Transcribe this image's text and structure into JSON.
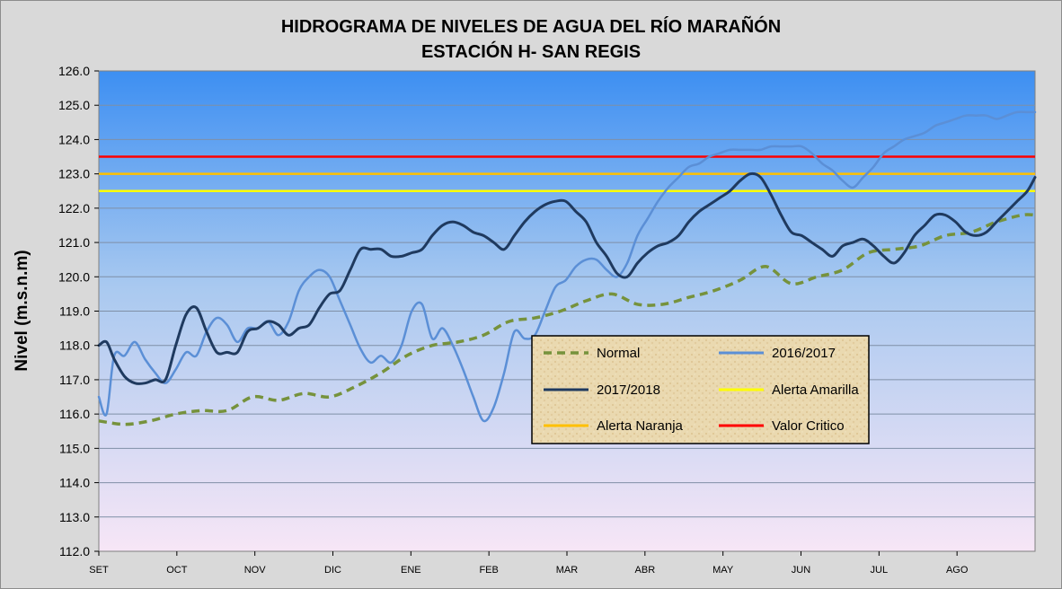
{
  "chart_data": {
    "type": "line",
    "title_line1": "HIDROGRAMA DE NIVELES DE AGUA DEL RÍO MARAÑÓN",
    "title_line2": "ESTACIÓN H- SAN REGIS",
    "ylabel": "Nivel (m.s.n.m)",
    "xlabel": "",
    "ylim": [
      112.0,
      126.0
    ],
    "yticks": [
      "112.0",
      "113.0",
      "114.0",
      "115.0",
      "116.0",
      "117.0",
      "118.0",
      "119.0",
      "120.0",
      "121.0",
      "122.0",
      "123.0",
      "124.0",
      "125.0",
      "126.0"
    ],
    "categories": [
      "SET",
      "OCT",
      "NOV",
      "DIC",
      "ENE",
      "FEB",
      "MAR",
      "ABR",
      "MAY",
      "JUN",
      "JUL",
      "AGO"
    ],
    "x_unit": "day of hydrological year starting 1 September",
    "x_range": [
      0,
      365
    ],
    "grid": true,
    "legend_position": "inside-center-right",
    "colors": {
      "background_top": "#3d8ff2",
      "background_bottom": "#f7e6f6",
      "frame": "#d9d9d9",
      "normal": "#76923c",
      "y2016": "#5b8fd6",
      "y2017": "#1f3a5f",
      "alerta_amarilla": "#ffff00",
      "alerta_naranja": "#ffc000",
      "valor_critico": "#ff0000"
    },
    "series": [
      {
        "name": "Normal",
        "key": "normal",
        "style": "dashed",
        "x": [
          0,
          10,
          20,
          30,
          40,
          50,
          60,
          70,
          80,
          90,
          100,
          110,
          120,
          130,
          140,
          150,
          160,
          170,
          180,
          190,
          200,
          210,
          220,
          230,
          240,
          250,
          260,
          270,
          280,
          290,
          300,
          310,
          320,
          330,
          340,
          350,
          360,
          365
        ],
        "y": [
          115.8,
          115.7,
          115.8,
          116.0,
          116.1,
          116.1,
          116.5,
          116.4,
          116.6,
          116.5,
          116.8,
          117.2,
          117.7,
          118.0,
          118.1,
          118.3,
          118.7,
          118.8,
          119.0,
          119.3,
          119.5,
          119.2,
          119.2,
          119.4,
          119.6,
          119.9,
          120.3,
          119.8,
          120.0,
          120.2,
          120.7,
          120.8,
          120.9,
          121.2,
          121.3,
          121.6,
          121.8,
          121.8
        ]
      },
      {
        "name": "2016/2017",
        "key": "y2016",
        "style": "solid",
        "x": [
          0,
          3,
          6,
          10,
          14,
          18,
          22,
          26,
          30,
          34,
          38,
          42,
          46,
          50,
          54,
          58,
          62,
          66,
          70,
          74,
          78,
          82,
          86,
          90,
          94,
          98,
          102,
          106,
          110,
          114,
          118,
          122,
          126,
          130,
          134,
          138,
          142,
          146,
          150,
          154,
          158,
          162,
          166,
          170,
          174,
          178,
          182,
          186,
          190,
          194,
          198,
          202,
          206,
          210,
          214,
          218,
          222,
          226,
          230,
          234,
          238,
          242,
          246,
          250,
          254,
          258,
          262,
          266,
          270,
          274,
          278,
          282,
          286,
          290,
          294,
          298,
          302,
          306,
          310,
          314,
          318,
          322,
          326,
          330,
          334,
          338,
          342,
          346,
          350,
          354,
          358,
          362,
          365
        ],
        "y": [
          116.5,
          116.0,
          117.7,
          117.7,
          118.1,
          117.6,
          117.2,
          116.9,
          117.3,
          117.8,
          117.7,
          118.4,
          118.8,
          118.6,
          118.1,
          118.5,
          118.5,
          118.7,
          118.3,
          118.7,
          119.6,
          120.0,
          120.2,
          120.0,
          119.3,
          118.6,
          117.9,
          117.5,
          117.7,
          117.5,
          118.0,
          119.0,
          119.2,
          118.2,
          118.5,
          118.0,
          117.3,
          116.5,
          115.8,
          116.2,
          117.2,
          118.4,
          118.2,
          118.3,
          119.0,
          119.7,
          119.9,
          120.3,
          120.5,
          120.5,
          120.2,
          120.0,
          120.4,
          121.2,
          121.7,
          122.2,
          122.6,
          122.9,
          123.2,
          123.3,
          123.5,
          123.6,
          123.7,
          123.7,
          123.7,
          123.7,
          123.8,
          123.8,
          123.8,
          123.8,
          123.6,
          123.3,
          123.1,
          122.8,
          122.6,
          122.9,
          123.2,
          123.6,
          123.8,
          124.0,
          124.1,
          124.2,
          124.4,
          124.5,
          124.6,
          124.7,
          124.7,
          124.7,
          124.6,
          124.7,
          124.8,
          124.8,
          124.8
        ]
      },
      {
        "name": "2017/2018",
        "key": "y2017",
        "style": "solid",
        "x": [
          0,
          3,
          6,
          10,
          14,
          18,
          22,
          26,
          30,
          34,
          38,
          42,
          46,
          50,
          54,
          58,
          62,
          66,
          70,
          74,
          78,
          82,
          86,
          90,
          94,
          98,
          102,
          106,
          110,
          114,
          118,
          122,
          126,
          130,
          134,
          138,
          142,
          146,
          150,
          154,
          158,
          162,
          166,
          170,
          174,
          178,
          182,
          186,
          190,
          194,
          198,
          202,
          206,
          210,
          214,
          218,
          222,
          226,
          230,
          234,
          238,
          242,
          246,
          250,
          254,
          258,
          262,
          266,
          270,
          274,
          278,
          282,
          286,
          290,
          294,
          298,
          302,
          306,
          310,
          314,
          318,
          322,
          326,
          330,
          334,
          338,
          342,
          346,
          350,
          354,
          358,
          362,
          365
        ],
        "y": [
          118.0,
          118.1,
          117.6,
          117.1,
          116.9,
          116.9,
          117.0,
          117.0,
          118.0,
          118.9,
          119.1,
          118.4,
          117.8,
          117.8,
          117.8,
          118.4,
          118.5,
          118.7,
          118.6,
          118.3,
          118.5,
          118.6,
          119.1,
          119.5,
          119.6,
          120.2,
          120.8,
          120.8,
          120.8,
          120.6,
          120.6,
          120.7,
          120.8,
          121.2,
          121.5,
          121.6,
          121.5,
          121.3,
          121.2,
          121.0,
          120.8,
          121.2,
          121.6,
          121.9,
          122.1,
          122.2,
          122.2,
          121.9,
          121.6,
          121.0,
          120.6,
          120.1,
          120.0,
          120.4,
          120.7,
          120.9,
          121.0,
          121.2,
          121.6,
          121.9,
          122.1,
          122.3,
          122.5,
          122.8,
          123.0,
          122.9,
          122.4,
          121.8,
          121.3,
          121.2,
          121.0,
          120.8,
          120.6,
          120.9,
          121.0,
          121.1,
          120.9,
          120.6,
          120.4,
          120.7,
          121.2,
          121.5,
          121.8,
          121.8,
          121.6,
          121.3,
          121.2,
          121.3,
          121.6,
          121.9,
          122.2,
          122.5,
          122.9
        ]
      }
    ],
    "thresholds": [
      {
        "name": "Alerta Amarilla",
        "key": "alerta_amarilla",
        "value": 122.5
      },
      {
        "name": "Alerta Naranja",
        "key": "alerta_naranja",
        "value": 123.0
      },
      {
        "name": "Valor Critico",
        "key": "valor_critico",
        "value": 123.5
      }
    ],
    "legend": [
      {
        "label": "Normal",
        "key": "normal",
        "style": "dashed"
      },
      {
        "label": "2016/2017",
        "key": "y2016",
        "style": "solid"
      },
      {
        "label": "2017/2018",
        "key": "y2017",
        "style": "solid"
      },
      {
        "label": "Alerta Amarilla",
        "key": "alerta_amarilla",
        "style": "solid"
      },
      {
        "label": "Alerta Naranja",
        "key": "alerta_naranja",
        "style": "solid"
      },
      {
        "label": "Valor Critico",
        "key": "valor_critico",
        "style": "solid"
      }
    ]
  }
}
